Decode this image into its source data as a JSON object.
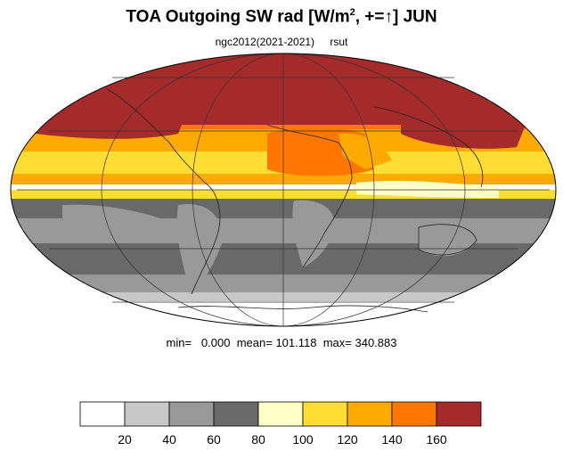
{
  "title": {
    "main_prefix": "TOA Outgoing SW rad [W/m",
    "superscript": "2",
    "main_suffix": ", +=↑] JUN"
  },
  "subtitle": {
    "left": "ngc2012(2021-2021)",
    "right": "rsut"
  },
  "stats": {
    "min_label": "min=",
    "min_value": "0.000",
    "mean_label": "mean=",
    "mean_value": "101.118",
    "max_label": "max=",
    "max_value": "340.883"
  },
  "colorbar": {
    "colors": [
      "#ffffff",
      "#c8c8c8",
      "#999999",
      "#696969",
      "#ffffc8",
      "#ffdd33",
      "#ffaa00",
      "#ff7700",
      "#a52a2a"
    ],
    "labels": [
      "20",
      "40",
      "60",
      "80",
      "100",
      "120",
      "140",
      "160"
    ]
  },
  "map_data": {
    "projection": "mollweide",
    "lat_band_values": [
      {
        "lat_from": 90,
        "lat_to": 60,
        "color": "#a52a2a"
      },
      {
        "lat_from": 60,
        "lat_to": 45,
        "color": "#ff7700"
      },
      {
        "lat_from": 45,
        "lat_to": 32,
        "color": "#ffaa00"
      },
      {
        "lat_from": 32,
        "lat_to": 20,
        "color": "#ffdd33"
      },
      {
        "lat_from": 20,
        "lat_to": 10,
        "color": "#ffffc8"
      },
      {
        "lat_from": 10,
        "lat_to": 0,
        "color": "#ffdd33"
      },
      {
        "lat_from": 0,
        "lat_to": -20,
        "color": "#696969"
      },
      {
        "lat_from": -20,
        "lat_to": -35,
        "color": "#999999"
      },
      {
        "lat_from": -35,
        "lat_to": -50,
        "color": "#696969"
      },
      {
        "lat_from": -50,
        "lat_to": -65,
        "color": "#c8c8c8"
      },
      {
        "lat_from": -65,
        "lat_to": -90,
        "color": "#ffffff"
      }
    ]
  }
}
